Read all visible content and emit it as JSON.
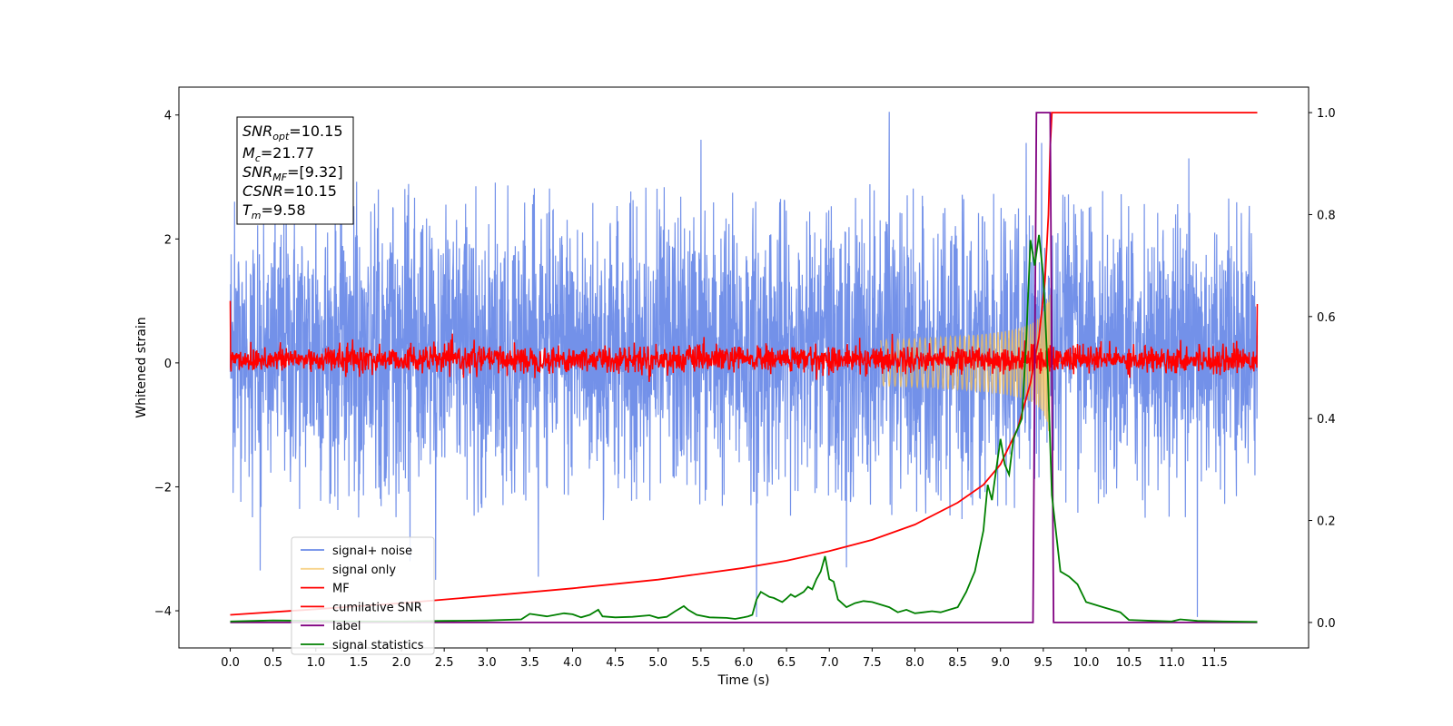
{
  "chart_data": {
    "type": "line",
    "xlabel": "Time (s)",
    "ylabel": "Whitened strain",
    "xlim": [
      -0.6,
      12.6
    ],
    "ylim": [
      -4.6,
      4.45
    ],
    "y2lim": [
      -0.05,
      1.05
    ],
    "x_ticks": [
      "0.0",
      "0.5",
      "1.0",
      "1.5",
      "2.0",
      "2.5",
      "3.0",
      "3.5",
      "4.0",
      "4.5",
      "5.0",
      "5.5",
      "6.0",
      "6.5",
      "7.0",
      "7.5",
      "8.0",
      "8.5",
      "9.0",
      "9.5",
      "10.0",
      "10.5",
      "11.0",
      "11.5"
    ],
    "y_ticks": [
      "−4",
      "−2",
      "0",
      "2",
      "4"
    ],
    "y2_ticks": [
      "0.0",
      "0.2",
      "0.4",
      "0.6",
      "0.8",
      "1.0"
    ],
    "legend_position": "lower-left",
    "annotation": {
      "snr_opt": "=10.15",
      "mc": "=21.77",
      "snr_mf": "=[9.32]",
      "csnr": "=10.15",
      "tm": "=9.58"
    },
    "series": [
      {
        "name": "signal+ noise",
        "color": "#6b8be8",
        "axis": "left",
        "style": "noise band",
        "duration": 12.0,
        "typical_range": [
          -1.6,
          2.0
        ],
        "peaks": [
          [
            0.05,
            2.6
          ],
          [
            0.35,
            -3.35
          ],
          [
            1.0,
            3.0
          ],
          [
            2.1,
            -3.2
          ],
          [
            2.4,
            -3.5
          ],
          [
            3.6,
            -3.45
          ],
          [
            5.5,
            3.6
          ],
          [
            6.15,
            -4.1
          ],
          [
            7.2,
            -3.3
          ],
          [
            7.7,
            4.05
          ],
          [
            9.3,
            3.55
          ],
          [
            9.48,
            3.55
          ],
          [
            11.3,
            -4.1
          ],
          [
            11.2,
            3.3
          ]
        ]
      },
      {
        "name": "signal only",
        "color": "#f5c15a",
        "axis": "left",
        "style": "chirp",
        "merger_time": 9.58,
        "peak_amplitude": 1.05
      },
      {
        "name": "MF",
        "color": "#ff0000",
        "axis": "left",
        "style": "noise band",
        "typical_range": [
          -0.18,
          0.3
        ],
        "start_value": 1.0,
        "end_value": 0.95
      },
      {
        "name": "cumilative SNR",
        "color": "#ff0000",
        "axis": "right",
        "x": [
          0.0,
          1.0,
          2.0,
          3.0,
          4.0,
          5.0,
          6.0,
          6.5,
          7.0,
          7.5,
          8.0,
          8.5,
          8.8,
          9.0,
          9.2,
          9.35,
          9.45,
          9.52,
          9.56,
          9.58,
          9.6,
          12.0
        ],
        "values": [
          0.015,
          0.026,
          0.038,
          0.052,
          0.067,
          0.084,
          0.107,
          0.121,
          0.14,
          0.162,
          0.192,
          0.235,
          0.27,
          0.31,
          0.38,
          0.47,
          0.56,
          0.67,
          0.8,
          0.93,
          1.0,
          1.0
        ]
      },
      {
        "name": "label",
        "color": "#800080",
        "axis": "right",
        "x": [
          0.0,
          9.38,
          9.42,
          9.58,
          9.62,
          12.0
        ],
        "values": [
          0.0,
          0.0,
          1.0,
          1.0,
          0.0,
          0.0
        ]
      },
      {
        "name": "signal statistics",
        "color": "#008000",
        "axis": "right",
        "x": [
          0.0,
          0.5,
          1.0,
          1.5,
          2.0,
          2.5,
          3.0,
          3.4,
          3.5,
          3.7,
          3.9,
          4.0,
          4.1,
          4.2,
          4.3,
          4.35,
          4.5,
          4.7,
          4.9,
          5.0,
          5.1,
          5.2,
          5.3,
          5.35,
          5.45,
          5.6,
          5.8,
          5.9,
          6.0,
          6.05,
          6.1,
          6.15,
          6.2,
          6.25,
          6.3,
          6.35,
          6.45,
          6.5,
          6.55,
          6.6,
          6.7,
          6.75,
          6.8,
          6.85,
          6.9,
          6.95,
          7.0,
          7.05,
          7.1,
          7.2,
          7.3,
          7.4,
          7.5,
          7.6,
          7.7,
          7.8,
          7.9,
          8.0,
          8.1,
          8.2,
          8.3,
          8.4,
          8.5,
          8.6,
          8.65,
          8.7,
          8.8,
          8.85,
          8.9,
          8.95,
          9.0,
          9.05,
          9.1,
          9.15,
          9.2,
          9.25,
          9.3,
          9.35,
          9.4,
          9.45,
          9.5,
          9.55,
          9.6,
          9.7,
          9.8,
          9.9,
          10.0,
          10.1,
          10.2,
          10.3,
          10.4,
          10.5,
          10.8,
          11.0,
          11.1,
          11.3,
          11.6,
          12.0
        ],
        "values": [
          0.002,
          0.004,
          0.003,
          0.002,
          0.002,
          0.003,
          0.004,
          0.006,
          0.017,
          0.012,
          0.018,
          0.016,
          0.01,
          0.015,
          0.025,
          0.012,
          0.01,
          0.011,
          0.014,
          0.009,
          0.011,
          0.022,
          0.032,
          0.025,
          0.015,
          0.01,
          0.009,
          0.007,
          0.01,
          0.012,
          0.015,
          0.045,
          0.06,
          0.055,
          0.05,
          0.048,
          0.04,
          0.047,
          0.055,
          0.05,
          0.06,
          0.07,
          0.065,
          0.085,
          0.1,
          0.13,
          0.085,
          0.08,
          0.045,
          0.03,
          0.038,
          0.042,
          0.04,
          0.035,
          0.03,
          0.02,
          0.025,
          0.018,
          0.02,
          0.022,
          0.02,
          0.025,
          0.03,
          0.06,
          0.08,
          0.1,
          0.18,
          0.27,
          0.24,
          0.3,
          0.36,
          0.31,
          0.29,
          0.36,
          0.38,
          0.4,
          0.55,
          0.75,
          0.7,
          0.76,
          0.68,
          0.5,
          0.25,
          0.1,
          0.09,
          0.075,
          0.04,
          0.035,
          0.03,
          0.025,
          0.02,
          0.005,
          0.003,
          0.002,
          0.006,
          0.003,
          0.002,
          0.001
        ]
      }
    ]
  }
}
